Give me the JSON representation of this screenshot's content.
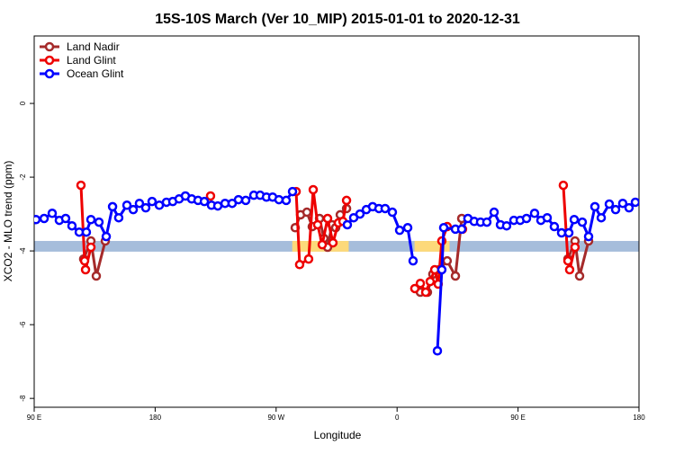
{
  "chart_data": {
    "type": "line",
    "title": "15S-10S March (Ver 10_MIP)   2015-01-01 to 2020-12-31",
    "x_label": "Longitude",
    "y_label": "XCO2 - MLO trend (ppm)",
    "xlim": [
      90,
      540
    ],
    "ylim": [
      -8.24,
      1.83
    ],
    "xticks": [
      {
        "value": 90,
        "label": "90 E"
      },
      180,
      {
        "value": 270,
        "label": "90 W"
      },
      {
        "value": 360,
        "label": "0"
      },
      {
        "value": 450,
        "label": "90 E"
      },
      {
        "value": 540,
        "label": "180"
      }
    ],
    "yticks": [
      0,
      -2,
      -4,
      -6,
      -8
    ],
    "legend": "top-left",
    "reference_band": {
      "ylim": [
        -4.02,
        -3.73
      ],
      "color": "#a6bddb"
    },
    "highlight_bands": {
      "color": "#fdd97a",
      "xranges": [
        [
          282,
          324
        ],
        [
          373,
          399
        ]
      ]
    },
    "series": [
      {
        "name": "Land Nadir",
        "color": "#a52a2a",
        "x": [
          126.8,
          132.2,
          136.2,
          142.9,
          null,
          284.2,
          288.2,
          292.9,
          296.9,
          302.3,
          305.6,
          308.3,
          311.6,
          314.3,
          317.7,
          322.4,
          null,
          377.3,
          382.6,
          386.6,
          391.3,
          397.3,
          403.4,
          408.1,
          null,
          487.1,
          492.4,
          495.8,
          502.5
        ],
        "values": [
          -4.22,
          -3.73,
          -4.68,
          -3.73,
          null,
          -3.37,
          -3.02,
          -2.95,
          -3.34,
          -3.12,
          -3.66,
          -3.9,
          -3.29,
          -3.37,
          -3.02,
          -2.85,
          null,
          -5.12,
          -5.12,
          -4.63,
          -4.51,
          -4.27,
          -4.68,
          -3.12,
          null,
          -4.22,
          -3.73,
          -4.68,
          -3.73
        ]
      },
      {
        "name": "Land Glint",
        "color": "#ee0000",
        "x": [
          124.8,
          127.5,
          128.2,
          132.2,
          null,
          221.2,
          null,
          284.9,
          287.5,
          294.2,
          297.6,
          300.9,
          304.3,
          308.3,
          312.3,
          316.3,
          319.7,
          322.4,
          null,
          373.2,
          377.3,
          381.3,
          384.6,
          388.0,
          390.6,
          393.3,
          397.3,
          408.7,
          null,
          483.7,
          487.1,
          488.4,
          492.4
        ],
        "values": [
          -2.22,
          -4.27,
          -4.51,
          -3.9,
          null,
          -2.51,
          null,
          -2.39,
          -4.37,
          -4.22,
          -2.34,
          -3.29,
          -3.83,
          -3.12,
          -3.78,
          -3.24,
          -3.2,
          -2.63,
          null,
          -5.02,
          -4.88,
          -5.12,
          -4.83,
          -4.51,
          -4.9,
          -3.73,
          -3.34,
          -3.41,
          null,
          -2.22,
          -4.27,
          -4.51,
          -3.9
        ]
      },
      {
        "name": "Ocean Glint",
        "color": "#0000ff",
        "x": [
          91.3,
          97.4,
          103.4,
          108.7,
          113.4,
          118.1,
          123.5,
          128.8,
          132.2,
          138.2,
          143.6,
          148.3,
          152.9,
          159.0,
          163.7,
          168.3,
          173.0,
          177.7,
          183.1,
          188.4,
          193.1,
          197.8,
          202.5,
          207.2,
          211.9,
          216.6,
          221.9,
          226.6,
          232.0,
          237.3,
          242.0,
          247.4,
          253.4,
          258.1,
          262.8,
          267.4,
          272.1,
          277.5,
          282.2,
          null,
          323.0,
          327.7,
          332.4,
          337.1,
          341.8,
          346.5,
          351.1,
          356.5,
          361.9,
          367.9,
          371.9,
          null,
          390.0,
          393.3,
          394.7,
          403.4,
          408.1,
          412.7,
          417.4,
          422.1,
          426.8,
          432.2,
          436.9,
          441.5,
          446.9,
          451.6,
          456.3,
          462.3,
          467.0,
          471.7,
          477.0,
          482.4,
          487.8,
          491.8,
          497.8,
          502.5,
          507.2,
          511.9,
          517.9,
          522.6,
          527.9,
          532.6,
          537.3
        ],
        "values": [
          -3.15,
          -3.12,
          -2.98,
          -3.17,
          -3.12,
          -3.32,
          -3.49,
          -3.49,
          -3.15,
          -3.22,
          -3.61,
          -2.8,
          -3.1,
          -2.76,
          -2.88,
          -2.71,
          -2.83,
          -2.66,
          -2.76,
          -2.68,
          -2.66,
          -2.59,
          -2.51,
          -2.59,
          -2.63,
          -2.66,
          -2.76,
          -2.78,
          -2.71,
          -2.71,
          -2.61,
          -2.63,
          -2.49,
          -2.49,
          -2.54,
          -2.54,
          -2.61,
          -2.63,
          -2.39,
          null,
          -3.29,
          -3.1,
          -3.0,
          -2.88,
          -2.8,
          -2.85,
          -2.85,
          -2.95,
          -3.44,
          -3.37,
          -4.27,
          null,
          -6.71,
          -4.51,
          -3.37,
          -3.41,
          -3.41,
          -3.12,
          -3.2,
          -3.22,
          -3.22,
          -2.95,
          -3.29,
          -3.32,
          -3.17,
          -3.17,
          -3.12,
          -2.98,
          -3.17,
          -3.1,
          -3.34,
          -3.51,
          -3.51,
          -3.15,
          -3.22,
          -3.61,
          -2.8,
          -3.1,
          -2.73,
          -2.88,
          -2.71,
          -2.83,
          -2.68
        ]
      }
    ]
  }
}
